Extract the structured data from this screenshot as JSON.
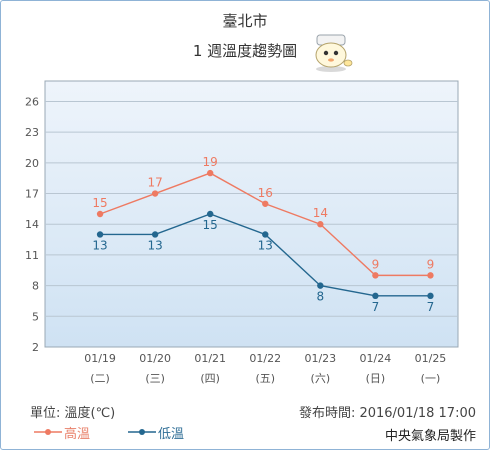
{
  "header": {
    "city": "臺北市",
    "subtitle": "1 週溫度趨勢圖"
  },
  "footer": {
    "unit": "單位: 溫度(℃)",
    "published": "發布時間: 2016/01/18 17:00",
    "maker": "中央氣象局製作"
  },
  "colors": {
    "high": "#ee7a62",
    "low": "#24678f",
    "plot_top": "#eef4fb",
    "plot_bottom": "#cfe2f3",
    "grid": "#b9c6d2"
  },
  "chart_data": {
    "type": "line",
    "title": "1 週溫度趨勢圖",
    "xlabel": "",
    "ylabel": "",
    "ylim": [
      2,
      28
    ],
    "y_ticks": [
      2,
      5,
      8,
      11,
      14,
      17,
      20,
      23,
      26
    ],
    "categories": [
      "01/19",
      "01/20",
      "01/21",
      "01/22",
      "01/23",
      "01/24",
      "01/25"
    ],
    "weekdays": [
      "(二)",
      "(三)",
      "(四)",
      "(五)",
      "(六)",
      "(日)",
      "(一)"
    ],
    "grid": true,
    "legend": "bottom-left",
    "series": [
      {
        "name": "高溫",
        "key": "high",
        "values": [
          15,
          17,
          19,
          16,
          14,
          9,
          9
        ]
      },
      {
        "name": "低溫",
        "key": "low",
        "values": [
          13,
          13,
          15,
          13,
          8,
          7,
          7
        ]
      }
    ]
  }
}
